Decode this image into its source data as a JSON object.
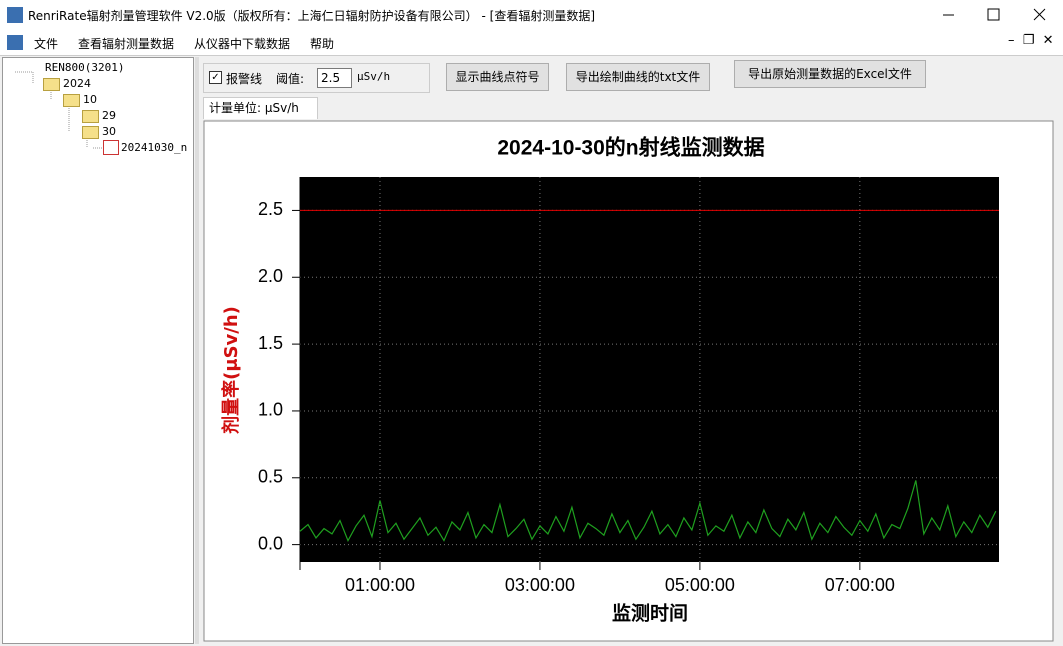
{
  "window": {
    "title": "RenriRate辐射剂量管理软件 V2.0版（版权所有：上海仁日辐射防护设备有限公司） - [查看辐射测量数据]",
    "menu": [
      "文件",
      "查看辐射测量数据",
      "从仪器中下载数据",
      "帮助"
    ]
  },
  "tree": {
    "nodes": [
      {
        "label": "REN800(3201)"
      },
      {
        "label": "2024"
      },
      {
        "label": "10"
      },
      {
        "label": "29"
      },
      {
        "label": "30"
      },
      {
        "label": "20241030_n"
      }
    ]
  },
  "toolbar": {
    "alarm_line": "报警线",
    "threshold_label": "阈值:",
    "threshold": 2.5,
    "unit": "μSv/h",
    "buttons": [
      "显示曲线点符号",
      "导出绘制曲线的txt文件",
      "导出原始测量数据的Excel文件"
    ]
  },
  "tab": "计量单位: μSv/h",
  "chart_data": {
    "type": "line",
    "title": "2024-10-30的n射线监测数据",
    "x_label": "监测时间",
    "y_label": "剂量率(μSv/h)",
    "x": [
      0,
      0.1,
      0.2,
      0.3,
      0.4,
      0.5,
      0.6,
      0.7,
      0.8,
      0.9,
      1,
      1.1,
      1.2,
      1.3,
      1.4,
      1.5,
      1.6,
      1.7,
      1.8,
      1.9,
      2,
      2.1,
      2.2,
      2.3,
      2.4,
      2.5,
      2.6,
      2.7,
      2.8,
      2.9,
      3,
      3.1,
      3.2,
      3.3,
      3.4,
      3.5,
      3.6,
      3.7,
      3.8,
      3.9,
      4,
      4.1,
      4.2,
      4.3,
      4.4,
      4.5,
      4.6,
      4.7,
      4.8,
      4.9,
      5,
      5.1,
      5.2,
      5.3,
      5.4,
      5.5,
      5.6,
      5.7,
      5.8,
      5.9,
      6,
      6.1,
      6.2,
      6.3,
      6.4,
      6.5,
      6.6,
      6.7,
      6.8,
      6.9,
      7,
      7.1,
      7.2,
      7.3,
      7.4,
      7.5,
      7.6,
      7.7,
      7.8,
      7.9,
      8,
      8.1,
      8.2,
      8.3,
      8.4,
      8.5,
      8.6,
      8.7
    ],
    "series": [
      {
        "color": "#1fa01f",
        "values": [
          0.1,
          0.15,
          0.05,
          0.12,
          0.08,
          0.18,
          0.03,
          0.14,
          0.22,
          0.06,
          0.33,
          0.09,
          0.16,
          0.04,
          0.12,
          0.2,
          0.07,
          0.13,
          0.03,
          0.17,
          0.11,
          0.24,
          0.05,
          0.15,
          0.09,
          0.3,
          0.06,
          0.12,
          0.19,
          0.04,
          0.14,
          0.08,
          0.21,
          0.1,
          0.28,
          0.05,
          0.16,
          0.12,
          0.07,
          0.23,
          0.09,
          0.18,
          0.04,
          0.13,
          0.25,
          0.08,
          0.15,
          0.06,
          0.2,
          0.11,
          0.31,
          0.07,
          0.14,
          0.1,
          0.22,
          0.05,
          0.17,
          0.09,
          0.26,
          0.12,
          0.06,
          0.19,
          0.11,
          0.24,
          0.04,
          0.16,
          0.09,
          0.21,
          0.13,
          0.07,
          0.18,
          0.1,
          0.23,
          0.05,
          0.15,
          0.12,
          0.27,
          0.48,
          0.08,
          0.2,
          0.11,
          0.29,
          0.06,
          0.17,
          0.09,
          0.22,
          0.13,
          0.25
        ]
      }
    ],
    "xlim": [
      0,
      8.74
    ],
    "xticks": [
      {
        "value": 1,
        "label": "01:00:00"
      },
      {
        "value": 3,
        "label": "03:00:00"
      },
      {
        "value": 5,
        "label": "05:00:00"
      },
      {
        "value": 7,
        "label": "07:00:00"
      }
    ],
    "ylim": [
      -0.13,
      2.75
    ],
    "yticks": [
      {
        "value": 0,
        "label": "0.0"
      },
      {
        "value": 0.5,
        "label": "0.5"
      },
      {
        "value": 1,
        "label": "1.0"
      },
      {
        "value": 1.5,
        "label": "1.5"
      },
      {
        "value": 2,
        "label": "2.0"
      },
      {
        "value": 2.5,
        "label": "2.5"
      }
    ],
    "grid": true,
    "threshold_color": "#e00000",
    "background": "#000000"
  }
}
